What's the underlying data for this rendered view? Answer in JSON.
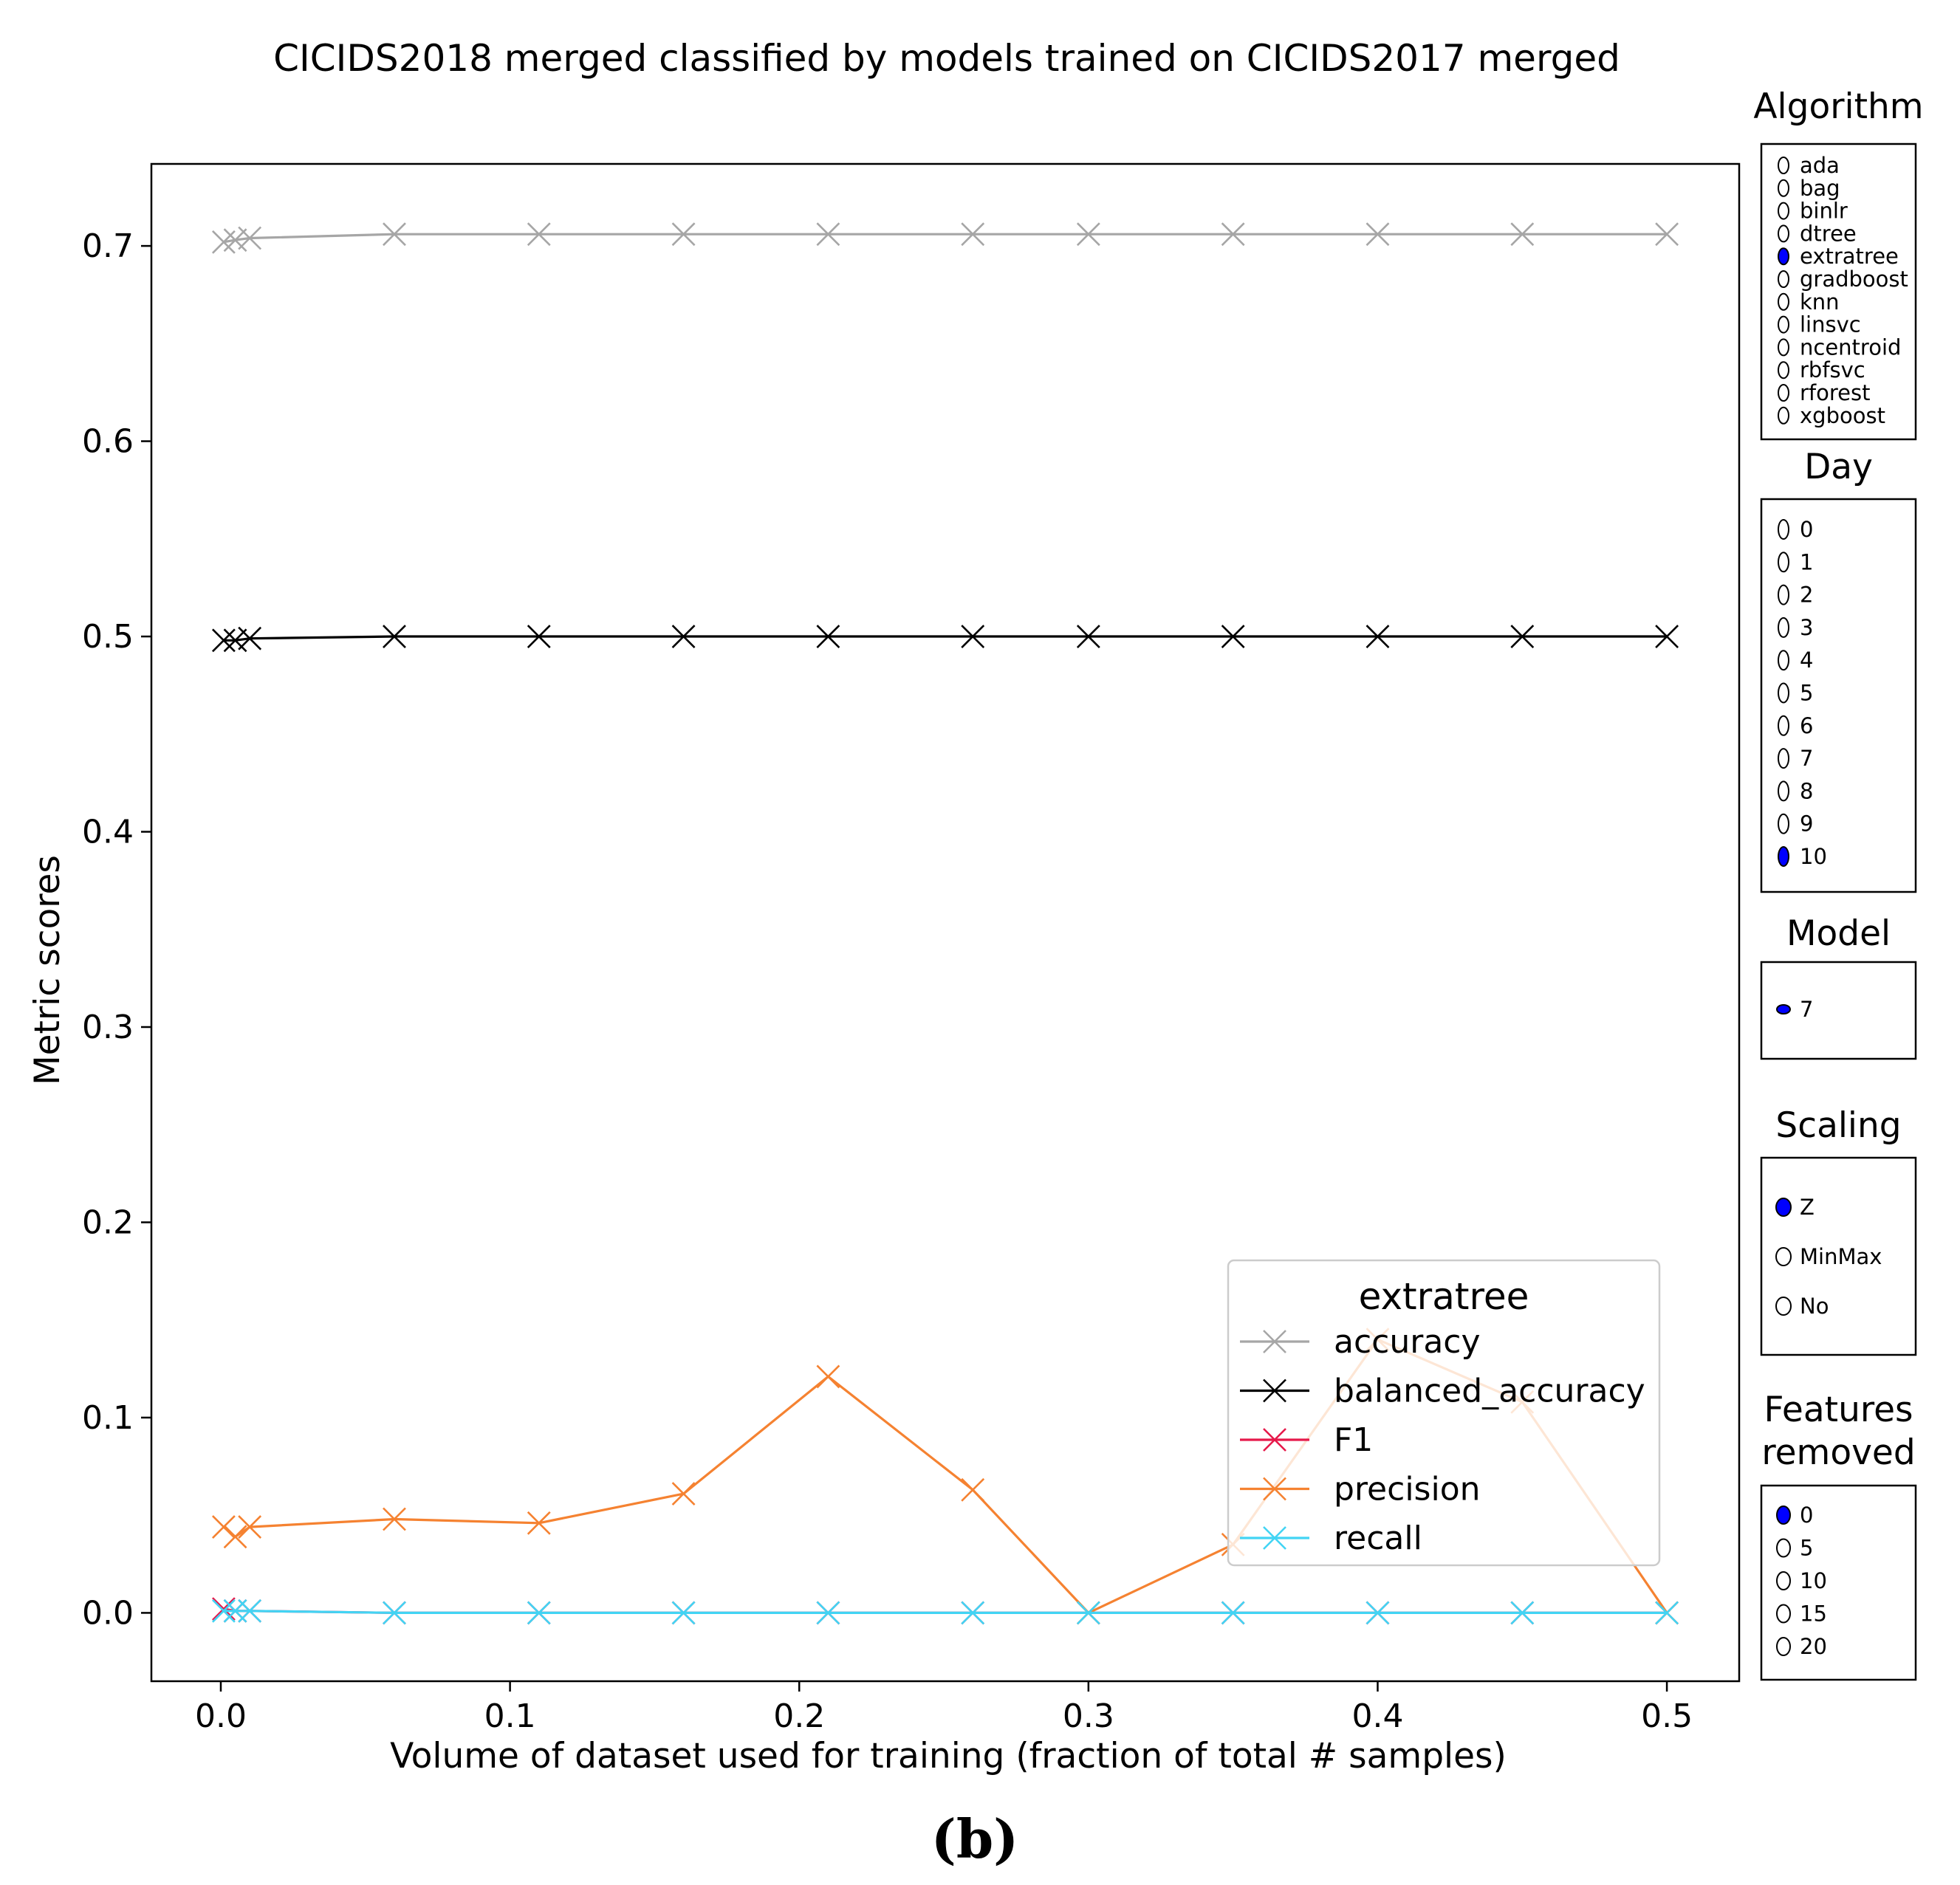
{
  "chart_data": {
    "type": "line",
    "title": "CICIDS2018 merged classified by models trained on CICIDS2017 merged",
    "xlabel": "Volume of dataset used for training (fraction of total # samples)",
    "ylabel": "Metric scores",
    "xlim": [
      -0.024,
      0.525
    ],
    "ylim": [
      -0.035,
      0.742
    ],
    "xticks": [
      0.0,
      0.1,
      0.2,
      0.3,
      0.4,
      0.5
    ],
    "xtick_labels": [
      "0.0",
      "0.1",
      "0.2",
      "0.3",
      "0.4",
      "0.5"
    ],
    "yticks": [
      0.0,
      0.1,
      0.2,
      0.3,
      0.4,
      0.5,
      0.6,
      0.7
    ],
    "ytick_labels": [
      "0.0",
      "0.1",
      "0.2",
      "0.3",
      "0.4",
      "0.5",
      "0.6",
      "0.7"
    ],
    "grid": false,
    "x": [
      0.001,
      0.005,
      0.01,
      0.06,
      0.11,
      0.16,
      0.21,
      0.26,
      0.3,
      0.35,
      0.4,
      0.45,
      0.5
    ],
    "legend": {
      "title": "extratree",
      "placement": "lower-right"
    },
    "series": [
      {
        "name": "accuracy",
        "color": "#a6a6a6",
        "values": [
          0.702,
          0.703,
          0.704,
          0.706,
          0.706,
          0.706,
          0.706,
          0.706,
          0.706,
          0.706,
          0.706,
          0.706,
          0.706
        ]
      },
      {
        "name": "balanced_accuracy",
        "color": "#000000",
        "values": [
          0.498,
          0.498,
          0.499,
          0.5,
          0.5,
          0.5,
          0.5,
          0.5,
          0.5,
          0.5,
          0.5,
          0.5,
          0.5
        ]
      },
      {
        "name": "F1",
        "color": "#e6194b",
        "values": [
          0.002,
          0.001,
          0.001,
          0.0,
          0.0,
          0.0,
          0.0,
          0.0,
          0.0,
          0.0,
          0.0,
          0.0,
          0.0
        ]
      },
      {
        "name": "precision",
        "color": "#f58231",
        "values": [
          0.044,
          0.039,
          0.044,
          0.048,
          0.046,
          0.061,
          0.121,
          0.063,
          0.0,
          0.035,
          0.14,
          0.108,
          0.0
        ]
      },
      {
        "name": "recall",
        "color": "#42d4f4",
        "values": [
          0.001,
          0.001,
          0.001,
          0.0,
          0.0,
          0.0,
          0.0,
          0.0,
          0.0,
          0.0,
          0.0,
          0.0,
          0.0
        ]
      }
    ]
  },
  "widgets": {
    "accent_color": "#0000ff",
    "panels": [
      {
        "title": "Algorithm",
        "options": [
          "ada",
          "bag",
          "binlr",
          "dtree",
          "extratree",
          "gradboost",
          "knn",
          "linsvc",
          "ncentroid",
          "rbfsvc",
          "rforest",
          "xgboost"
        ],
        "selected": "extratree"
      },
      {
        "title": "Day",
        "options": [
          "0",
          "1",
          "2",
          "3",
          "4",
          "5",
          "6",
          "7",
          "8",
          "9",
          "10"
        ],
        "selected": "10"
      },
      {
        "title": "Model",
        "options": [
          "7"
        ],
        "selected": "7"
      },
      {
        "title": "Scaling",
        "options": [
          "Z",
          "MinMax",
          "No"
        ],
        "selected": "Z"
      },
      {
        "title": "Features removed",
        "title_lines": [
          "Features",
          "removed"
        ],
        "options": [
          "0",
          "5",
          "10",
          "15",
          "20"
        ],
        "selected": "0"
      }
    ]
  },
  "caption": "(b)"
}
